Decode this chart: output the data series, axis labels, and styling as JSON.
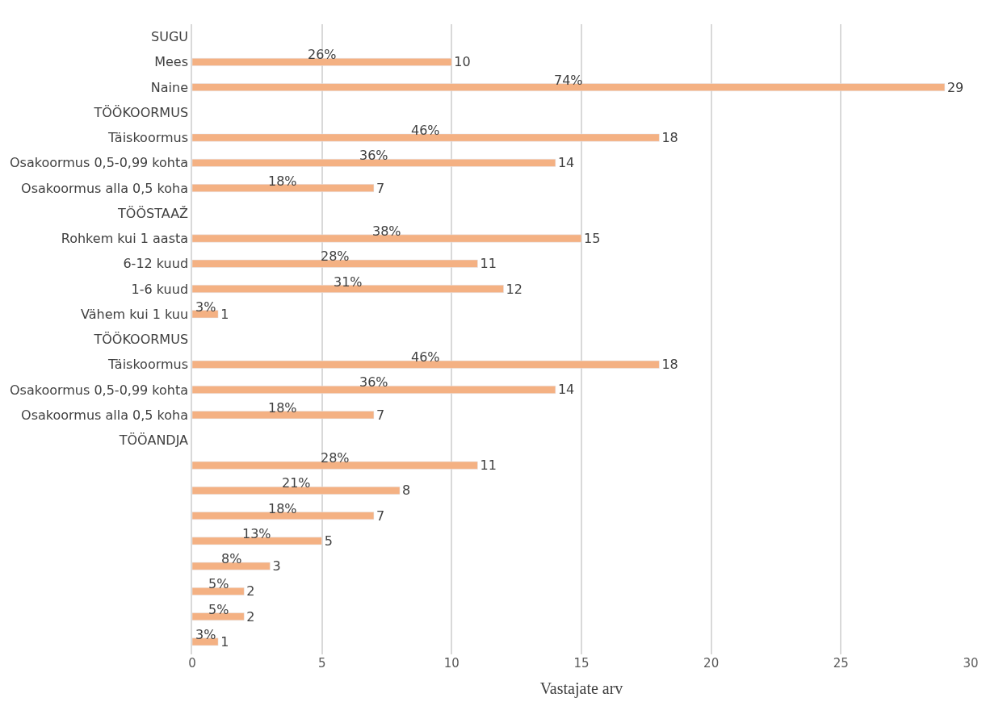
{
  "chart_data": {
    "type": "bar",
    "orientation": "horizontal",
    "xlabel": "Vastajate arv",
    "categories": [
      "SUGU",
      "Mees",
      "Naine",
      "TÖÖKOORMUS",
      "Täiskoormus",
      "Osakoormus 0,5-0,99 kohta",
      "Osakoormus alla 0,5 koha",
      "TÖÖSTAAŽ",
      "Rohkem kui 1 aasta",
      "6-12 kuud",
      "1-6 kuud",
      "Vähem kui 1 kuu",
      "TÖÖKOORMUS",
      "Täiskoormus",
      "Osakoormus 0,5-0,99 kohta",
      "Osakoormus alla 0,5 koha",
      "TÖÖANDJA",
      null,
      null,
      null,
      null,
      null,
      null,
      null,
      null
    ],
    "values": [
      null,
      10,
      29,
      null,
      18,
      14,
      7,
      null,
      15,
      11,
      12,
      1,
      null,
      18,
      14,
      7,
      null,
      11,
      8,
      7,
      5,
      3,
      2,
      2,
      1
    ],
    "annotations": [
      "26%",
      "74%",
      "46%",
      "36%",
      "18%",
      "38%",
      "28%",
      "31%",
      "3%",
      "46%",
      "36%",
      "18%",
      "28%",
      "21%",
      "18%",
      "13%",
      "8%",
      "5%",
      "5%",
      "3%"
    ],
    "data_labels": true,
    "color": "#f4b183",
    "xlim": [
      0,
      30
    ],
    "xticks": [
      0,
      5,
      10,
      15,
      20,
      25,
      30
    ],
    "grid": "x",
    "legend": false
  }
}
